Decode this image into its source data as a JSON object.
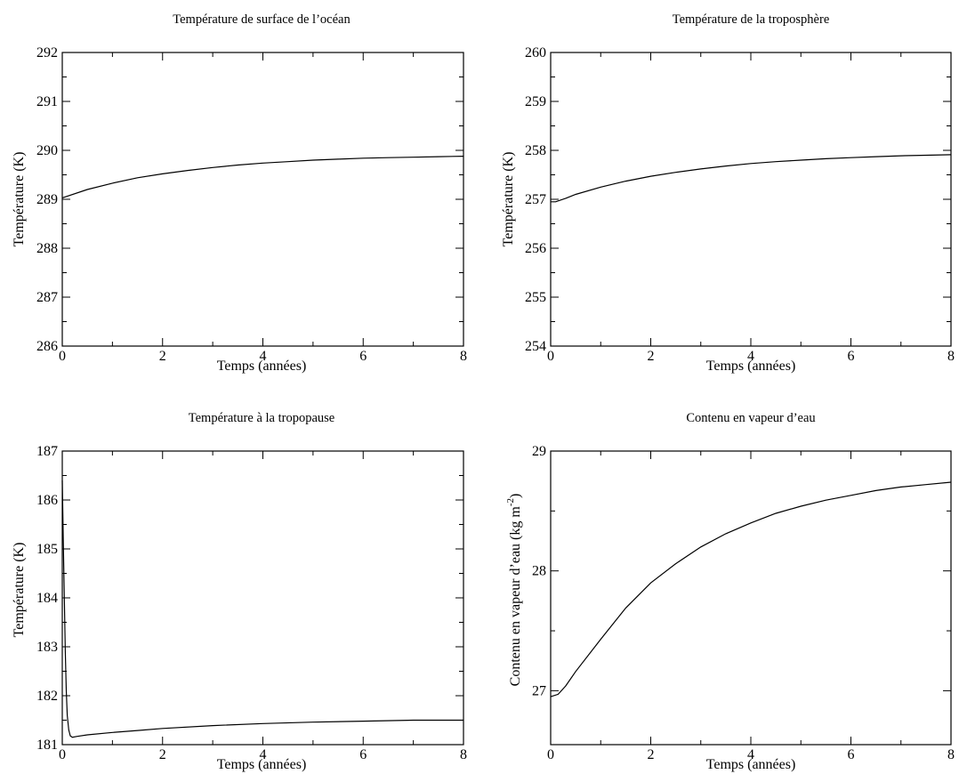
{
  "chart_data": [
    {
      "type": "line",
      "title": "Température de surface de l’océan",
      "xlabel": "Temps (années)",
      "ylabel": "Température (K)",
      "xlim": [
        0,
        8
      ],
      "ylim": [
        286,
        292
      ],
      "xticks": [
        "0",
        "2",
        "4",
        "6",
        "8"
      ],
      "yticks": [
        "286",
        "287",
        "288",
        "289",
        "290",
        "291",
        "292"
      ],
      "grid": false,
      "series": [
        {
          "x": [
            0,
            0.5,
            1,
            1.5,
            2,
            2.5,
            3,
            3.5,
            4,
            4.5,
            5,
            5.5,
            6,
            6.5,
            7,
            7.5,
            8
          ],
          "y": [
            289.03,
            289.2,
            289.33,
            289.44,
            289.52,
            289.59,
            289.65,
            289.7,
            289.74,
            289.77,
            289.8,
            289.82,
            289.84,
            289.85,
            289.86,
            289.87,
            289.88
          ]
        }
      ]
    },
    {
      "type": "line",
      "title": "Température de la troposphère",
      "xlabel": "Temps (années)",
      "ylabel": "Température (K)",
      "xlim": [
        0,
        8
      ],
      "ylim": [
        254,
        260
      ],
      "xticks": [
        "0",
        "2",
        "4",
        "6",
        "8"
      ],
      "yticks": [
        "254",
        "255",
        "256",
        "257",
        "258",
        "259",
        "260"
      ],
      "grid": false,
      "series": [
        {
          "x": [
            0,
            0.1,
            0.3,
            0.5,
            1,
            1.5,
            2,
            2.5,
            3,
            3.5,
            4,
            4.5,
            5,
            5.5,
            6,
            6.5,
            7,
            7.5,
            8
          ],
          "y": [
            256.95,
            256.95,
            257.02,
            257.1,
            257.25,
            257.37,
            257.47,
            257.55,
            257.62,
            257.68,
            257.73,
            257.77,
            257.8,
            257.83,
            257.85,
            257.87,
            257.89,
            257.9,
            257.91
          ]
        }
      ]
    },
    {
      "type": "line",
      "title": "Température à la tropopause",
      "xlabel": "Temps (années)",
      "ylabel": "Température (K)",
      "xlim": [
        0,
        8
      ],
      "ylim": [
        181,
        187
      ],
      "xticks": [
        "0",
        "2",
        "4",
        "6",
        "8"
      ],
      "yticks": [
        "181",
        "182",
        "183",
        "184",
        "185",
        "186",
        "187"
      ],
      "grid": false,
      "series": [
        {
          "x": [
            0,
            0.02,
            0.04,
            0.06,
            0.08,
            0.1,
            0.13,
            0.16,
            0.2,
            0.3,
            0.5,
            1,
            1.5,
            2,
            3,
            4,
            5,
            6,
            7,
            8
          ],
          "y": [
            186.4,
            185.2,
            184,
            182.9,
            182.1,
            181.6,
            181.3,
            181.18,
            181.15,
            181.17,
            181.2,
            181.25,
            181.29,
            181.33,
            181.39,
            181.43,
            181.46,
            181.48,
            181.5,
            181.5
          ]
        }
      ]
    },
    {
      "type": "line",
      "title": "Contenu en vapeur d’eau",
      "xlabel": "Temps (années)",
      "ylabel": "Contenu en vapeur d’eau (kg m",
      "ylabel_sup": "-2",
      "ylabel_tail": ")",
      "xlim": [
        0,
        8
      ],
      "ylim": [
        26.55,
        29
      ],
      "xticks": [
        "0",
        "2",
        "4",
        "6",
        "8"
      ],
      "yticks": [
        "27",
        "28",
        "29"
      ],
      "grid": false,
      "series": [
        {
          "x": [
            0,
            0.15,
            0.3,
            0.5,
            1,
            1.5,
            2,
            2.5,
            3,
            3.5,
            4,
            4.5,
            5,
            5.5,
            6,
            6.5,
            7,
            7.5,
            8
          ],
          "y": [
            26.95,
            26.97,
            27.04,
            27.16,
            27.43,
            27.69,
            27.9,
            28.06,
            28.2,
            28.31,
            28.4,
            28.48,
            28.54,
            28.59,
            28.63,
            28.67,
            28.7,
            28.72,
            28.74
          ]
        }
      ]
    }
  ]
}
